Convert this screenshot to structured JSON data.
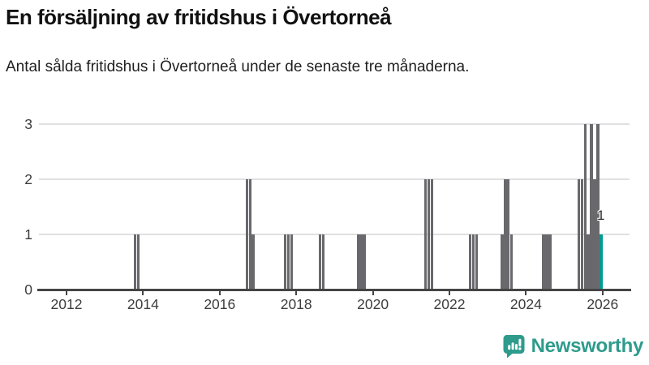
{
  "header": {
    "title": "En försäljning av fritidshus i Övertorneå",
    "subtitle": "Antal sålda fritidshus i Övertorneå under de senaste tre månaderna."
  },
  "footer": {
    "brand": "Newsworthy",
    "brand_color": "#2e9b8c",
    "logo_icon": "bar-chart-speech-bubble-icon"
  },
  "chart_data": {
    "type": "bar",
    "title": "En försäljning av fritidshus i Övertorneå",
    "subtitle": "Antal sålda fritidshus i Övertorneå under de senaste tre månaderna.",
    "ylabel": "",
    "xlabel": "",
    "ylim": [
      0,
      3
    ],
    "grid": true,
    "y_axis": {
      "ticks": [
        0,
        1,
        2,
        3
      ]
    },
    "x_axis": {
      "ticks": [
        2012,
        2014,
        2016,
        2018,
        2020,
        2022,
        2024,
        2026
      ],
      "range_years": [
        2011.3,
        2026.7
      ]
    },
    "colors": {
      "bar": "#69696d",
      "highlight": "#009b92",
      "grid": "#e0e0e0",
      "axis": "#454545"
    },
    "annotation": {
      "text": "1",
      "period": "2025-12"
    },
    "bars": [
      {
        "period": "2013-10",
        "value": 1
      },
      {
        "period": "2013-11",
        "value": 1
      },
      {
        "period": "2016-09",
        "value": 2
      },
      {
        "period": "2016-10",
        "value": 2
      },
      {
        "period": "2016-11",
        "value": 1
      },
      {
        "period": "2017-09",
        "value": 1
      },
      {
        "period": "2017-10",
        "value": 1
      },
      {
        "period": "2017-11",
        "value": 1
      },
      {
        "period": "2018-08",
        "value": 1
      },
      {
        "period": "2018-09",
        "value": 1
      },
      {
        "period": "2019-08",
        "value": 1
      },
      {
        "period": "2019-09",
        "value": 1
      },
      {
        "period": "2019-10",
        "value": 1
      },
      {
        "period": "2021-05",
        "value": 2
      },
      {
        "period": "2021-06",
        "value": 2
      },
      {
        "period": "2021-07",
        "value": 2
      },
      {
        "period": "2022-07",
        "value": 1
      },
      {
        "period": "2022-08",
        "value": 1
      },
      {
        "period": "2022-09",
        "value": 1
      },
      {
        "period": "2023-05",
        "value": 1
      },
      {
        "period": "2023-06",
        "value": 2
      },
      {
        "period": "2023-07",
        "value": 2
      },
      {
        "period": "2023-08",
        "value": 1
      },
      {
        "period": "2024-06",
        "value": 1
      },
      {
        "period": "2024-07",
        "value": 1
      },
      {
        "period": "2024-08",
        "value": 1
      },
      {
        "period": "2025-05",
        "value": 2
      },
      {
        "period": "2025-06",
        "value": 2
      },
      {
        "period": "2025-07",
        "value": 3
      },
      {
        "period": "2025-08",
        "value": 1
      },
      {
        "period": "2025-09",
        "value": 3
      },
      {
        "period": "2025-10",
        "value": 2
      },
      {
        "period": "2025-11",
        "value": 3
      },
      {
        "period": "2025-12",
        "value": 1,
        "highlight": true
      }
    ]
  }
}
